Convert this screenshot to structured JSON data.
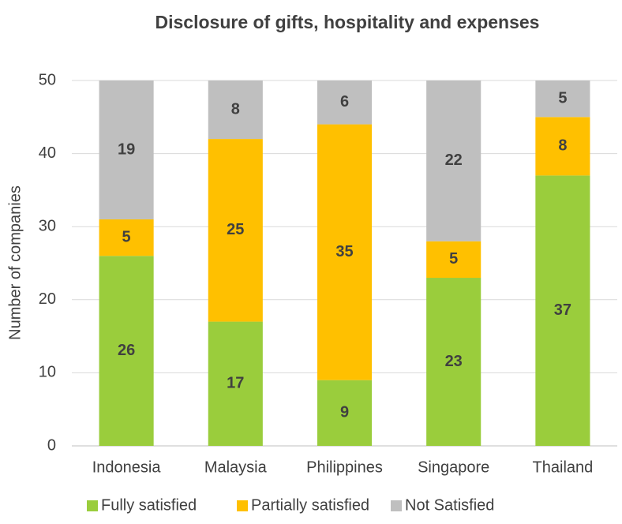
{
  "chart_data": {
    "type": "stacked_bar",
    "title": "Disclosure of gifts, hospitality and expenses",
    "ylabel": "Number of companies",
    "categories": [
      "Indonesia",
      "Malaysia",
      "Philippines",
      "Singapore",
      "Thailand"
    ],
    "series": [
      {
        "name": "Fully satisfied",
        "color": "#9acd3c",
        "values": [
          26,
          17,
          9,
          23,
          37
        ]
      },
      {
        "name": "Partially satisfied",
        "color": "#ffc000",
        "values": [
          5,
          25,
          35,
          5,
          8
        ]
      },
      {
        "name": "Not Satisfied",
        "color": "#bfbfbf",
        "values": [
          19,
          8,
          6,
          22,
          5
        ]
      }
    ],
    "ylim": [
      0,
      50
    ],
    "yticks": [
      0,
      10,
      20,
      30,
      40,
      50
    ],
    "grid": true,
    "legend": "bottom"
  }
}
